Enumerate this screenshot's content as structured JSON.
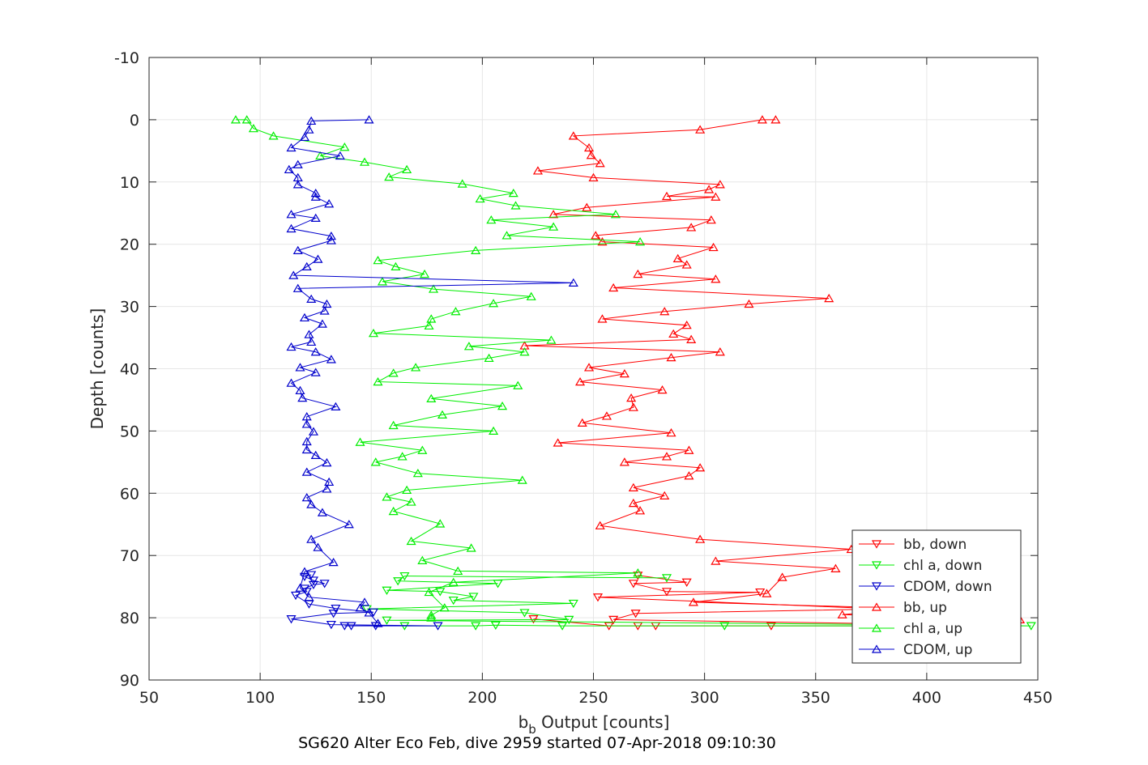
{
  "chart_data": {
    "type": "line",
    "title": "SG620 Alter Eco Feb, dive 2959 started 07-Apr-2018 09:10:30",
    "xlabel_main": "b",
    "xlabel_sub": "b",
    "xlabel_rest": " Output [counts]",
    "ylabel": "Depth [counts]",
    "xlim": [
      50,
      450
    ],
    "ylim": [
      -10,
      90
    ],
    "y_reversed": true,
    "grid": true,
    "legend_position": "bottom-right",
    "xticks": [
      "50",
      "100",
      "150",
      "200",
      "250",
      "300",
      "350",
      "400",
      "450"
    ],
    "yticks": [
      "-10",
      "0",
      "10",
      "20",
      "30",
      "40",
      "50",
      "60",
      "70",
      "80",
      "90"
    ],
    "series": [
      {
        "name": "bb, down",
        "color": "#ff0000",
        "marker": "triangle-down",
        "points": [
          [
            223,
            80.2
          ],
          [
            257,
            81.3
          ],
          [
            270,
            81.3
          ],
          [
            278,
            81.3
          ],
          [
            330,
            81.3
          ],
          [
            440,
            81.3
          ],
          [
            259,
            80.3
          ],
          [
            269,
            79.3
          ],
          [
            380,
            78.6
          ],
          [
            252,
            76.7
          ],
          [
            325,
            75.9
          ],
          [
            283,
            75.8
          ],
          [
            268,
            74.5
          ],
          [
            292,
            74.3
          ],
          [
            270,
            73.2
          ]
        ]
      },
      {
        "name": "chl a, down",
        "color": "#00ee00",
        "marker": "triangle-down",
        "points": [
          [
            165,
            81.3
          ],
          [
            197,
            81.3
          ],
          [
            206,
            81.2
          ],
          [
            236,
            81.3
          ],
          [
            309,
            81.3
          ],
          [
            447,
            81.3
          ],
          [
            157,
            80.4
          ],
          [
            239,
            80.3
          ],
          [
            219,
            79.2
          ],
          [
            148,
            78.6
          ],
          [
            241,
            77.7
          ],
          [
            187,
            77.2
          ],
          [
            196,
            76.6
          ],
          [
            181,
            75.8
          ],
          [
            157,
            75.6
          ],
          [
            207,
            74.5
          ],
          [
            162,
            74.1
          ],
          [
            165,
            73.3
          ],
          [
            283,
            73.6
          ]
        ]
      },
      {
        "name": "CDOM, down",
        "color": "#0000cc",
        "marker": "triangle-down",
        "points": [
          [
            141,
            81.3
          ],
          [
            138,
            81.3
          ],
          [
            152,
            81.3
          ],
          [
            180,
            81.3
          ],
          [
            132,
            81.1
          ],
          [
            114,
            80.2
          ],
          [
            133,
            79.3
          ],
          [
            151,
            79.1
          ],
          [
            134,
            78.5
          ],
          [
            122,
            77.8
          ],
          [
            116,
            76.4
          ],
          [
            121,
            75.8
          ],
          [
            120,
            75.3
          ],
          [
            124,
            74.7
          ],
          [
            129,
            74.5
          ],
          [
            124,
            74.0
          ],
          [
            120,
            73.4
          ],
          [
            123,
            73.1
          ]
        ]
      },
      {
        "name": "bb, up",
        "color": "#ff0000",
        "marker": "triangle-up",
        "points": [
          [
            332,
            0
          ],
          [
            326,
            0
          ],
          [
            298,
            1.6
          ],
          [
            241,
            2.6
          ],
          [
            248,
            4.5
          ],
          [
            249,
            5.7
          ],
          [
            253,
            7.0
          ],
          [
            225,
            8.2
          ],
          [
            250,
            9.3
          ],
          [
            307,
            10.4
          ],
          [
            302,
            11.2
          ],
          [
            283,
            12.3
          ],
          [
            305,
            12.4
          ],
          [
            247,
            14.1
          ],
          [
            232,
            15.2
          ],
          [
            303,
            16.1
          ],
          [
            294,
            17.3
          ],
          [
            251,
            18.6
          ],
          [
            254,
            19.6
          ],
          [
            304,
            20.5
          ],
          [
            288,
            22.3
          ],
          [
            292,
            23.3
          ],
          [
            270,
            24.8
          ],
          [
            305,
            25.6
          ],
          [
            259,
            27.0
          ],
          [
            356,
            28.7
          ],
          [
            320,
            29.6
          ],
          [
            282,
            30.8
          ],
          [
            254,
            32.0
          ],
          [
            292,
            33.0
          ],
          [
            286,
            34.4
          ],
          [
            294,
            35.3
          ],
          [
            219,
            36.3
          ],
          [
            307,
            37.3
          ],
          [
            285,
            38.2
          ],
          [
            248,
            39.8
          ],
          [
            264,
            40.8
          ],
          [
            244,
            42.1
          ],
          [
            281,
            43.4
          ],
          [
            267,
            44.7
          ],
          [
            268,
            46.2
          ],
          [
            256,
            47.6
          ],
          [
            245,
            48.7
          ],
          [
            285,
            50.3
          ],
          [
            234,
            51.9
          ],
          [
            293,
            53.1
          ],
          [
            283,
            54.1
          ],
          [
            264,
            55.0
          ],
          [
            298,
            55.9
          ],
          [
            293,
            57.2
          ],
          [
            268,
            59.1
          ],
          [
            282,
            60.4
          ],
          [
            268,
            61.6
          ],
          [
            271,
            62.8
          ],
          [
            253,
            65.2
          ],
          [
            298,
            67.4
          ],
          [
            366,
            69.0
          ],
          [
            305,
            70.9
          ],
          [
            359,
            72.1
          ],
          [
            335,
            73.5
          ],
          [
            328,
            76.1
          ],
          [
            295,
            77.5
          ],
          [
            392,
            78.5
          ],
          [
            362,
            79.5
          ],
          [
            413,
            80.0
          ],
          [
            442,
            80.3
          ]
        ]
      },
      {
        "name": "chl a, up",
        "color": "#00ee00",
        "marker": "triangle-up",
        "points": [
          [
            89,
            0
          ],
          [
            94,
            0
          ],
          [
            97,
            1.4
          ],
          [
            106,
            2.6
          ],
          [
            138,
            4.4
          ],
          [
            127,
            5.8
          ],
          [
            147,
            6.8
          ],
          [
            166,
            8.0
          ],
          [
            158,
            9.2
          ],
          [
            191,
            10.3
          ],
          [
            214,
            11.8
          ],
          [
            199,
            12.7
          ],
          [
            215,
            13.8
          ],
          [
            260,
            15.2
          ],
          [
            204,
            16.1
          ],
          [
            232,
            17.2
          ],
          [
            211,
            18.6
          ],
          [
            271,
            19.6
          ],
          [
            197,
            21.0
          ],
          [
            153,
            22.6
          ],
          [
            161,
            23.6
          ],
          [
            174,
            24.8
          ],
          [
            155,
            26.0
          ],
          [
            178,
            27.2
          ],
          [
            222,
            28.4
          ],
          [
            205,
            29.5
          ],
          [
            188,
            30.8
          ],
          [
            177,
            32.0
          ],
          [
            176,
            33.1
          ],
          [
            151,
            34.3
          ],
          [
            231,
            35.4
          ],
          [
            194,
            36.4
          ],
          [
            219,
            37.3
          ],
          [
            203,
            38.3
          ],
          [
            170,
            39.8
          ],
          [
            160,
            40.7
          ],
          [
            153,
            42.1
          ],
          [
            216,
            42.7
          ],
          [
            177,
            44.8
          ],
          [
            209,
            46.0
          ],
          [
            182,
            47.4
          ],
          [
            160,
            49.1
          ],
          [
            205,
            50.0
          ],
          [
            145,
            51.8
          ],
          [
            173,
            53.1
          ],
          [
            164,
            54.1
          ],
          [
            152,
            55.0
          ],
          [
            171,
            56.8
          ],
          [
            218,
            57.9
          ],
          [
            166,
            59.5
          ],
          [
            157,
            60.6
          ],
          [
            168,
            61.4
          ],
          [
            160,
            62.9
          ],
          [
            181,
            64.9
          ],
          [
            168,
            67.7
          ],
          [
            195,
            68.8
          ],
          [
            173,
            70.8
          ],
          [
            189,
            72.5
          ],
          [
            270,
            72.8
          ],
          [
            187,
            74.3
          ],
          [
            176,
            75.9
          ],
          [
            183,
            78.4
          ],
          [
            177,
            79.6
          ],
          [
            177,
            80.0
          ]
        ]
      },
      {
        "name": "CDOM, up",
        "color": "#0000cc",
        "marker": "triangle-up",
        "points": [
          [
            149,
            0
          ],
          [
            123,
            0.2
          ],
          [
            122,
            1.6
          ],
          [
            120,
            2.8
          ],
          [
            114,
            4.5
          ],
          [
            136,
            5.8
          ],
          [
            117,
            7.2
          ],
          [
            113,
            8.0
          ],
          [
            117,
            9.3
          ],
          [
            117,
            10.4
          ],
          [
            125,
            11.8
          ],
          [
            125,
            12.4
          ],
          [
            131,
            13.5
          ],
          [
            114,
            15.2
          ],
          [
            125,
            15.8
          ],
          [
            114,
            17.5
          ],
          [
            132,
            18.7
          ],
          [
            132,
            19.4
          ],
          [
            117,
            21.0
          ],
          [
            126,
            22.4
          ],
          [
            121,
            23.6
          ],
          [
            115,
            25.0
          ],
          [
            241,
            26.2
          ],
          [
            117,
            27.1
          ],
          [
            123,
            28.8
          ],
          [
            130,
            29.6
          ],
          [
            129,
            30.7
          ],
          [
            120,
            31.8
          ],
          [
            128,
            32.8
          ],
          [
            122,
            34.5
          ],
          [
            123,
            35.7
          ],
          [
            114,
            36.5
          ],
          [
            125,
            37.3
          ],
          [
            132,
            38.5
          ],
          [
            118,
            39.8
          ],
          [
            125,
            40.6
          ],
          [
            114,
            42.3
          ],
          [
            118,
            43.5
          ],
          [
            119,
            44.7
          ],
          [
            134,
            46.1
          ],
          [
            121,
            47.7
          ],
          [
            121,
            48.9
          ],
          [
            124,
            50.1
          ],
          [
            121,
            51.7
          ],
          [
            121,
            53.0
          ],
          [
            125,
            53.9
          ],
          [
            130,
            55.1
          ],
          [
            121,
            56.6
          ],
          [
            131,
            58.2
          ],
          [
            130,
            59.3
          ],
          [
            121,
            60.7
          ],
          [
            123,
            61.8
          ],
          [
            128,
            63.1
          ],
          [
            140,
            65.0
          ],
          [
            123,
            67.4
          ],
          [
            126,
            68.7
          ],
          [
            133,
            71.1
          ],
          [
            120,
            72.6
          ],
          [
            118,
            75.2
          ],
          [
            122,
            76.7
          ],
          [
            147,
            77.5
          ],
          [
            145,
            78.4
          ],
          [
            149,
            79.2
          ],
          [
            153,
            80.9
          ]
        ]
      }
    ]
  }
}
